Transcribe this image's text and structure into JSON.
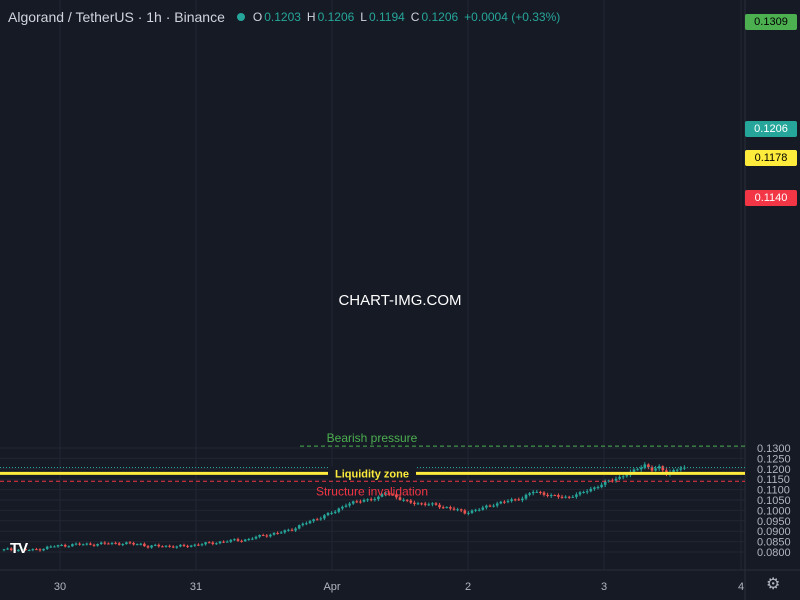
{
  "header": {
    "symbol": "Algorand / TetherUS · 1h · Binance",
    "o_label": "O",
    "o_value": "0.1203",
    "h_label": "H",
    "h_value": "0.1206",
    "l_label": "L",
    "l_value": "0.1194",
    "c_label": "C",
    "c_value": "0.1206",
    "change": "+0.0004 (+0.33%)"
  },
  "price_tags": {
    "bearish_level": "0.1309",
    "current": "0.1206",
    "liquidity": "0.1178",
    "invalidation": "0.1140"
  },
  "watermark": "CHART-IMG.COM",
  "colors": {
    "background": "#161a25",
    "up": "#26a69a",
    "down": "#ef5350",
    "liquidity": "#ffeb3b",
    "bearish": "#4caf50",
    "invalidation": "#f23645"
  },
  "icons": {
    "logo": "tradingview-logo-icon",
    "settings": "gear-icon"
  },
  "chart_data": {
    "type": "candlestick",
    "title": "Algorand / TetherUS · 1h · Binance",
    "x_ticks": [
      "30",
      "31",
      "Apr",
      "2",
      "3",
      "4"
    ],
    "y_ticks": [
      "0.0800",
      "0.0850",
      "0.0900",
      "0.0950",
      "0.1000",
      "0.1050",
      "0.1100",
      "0.1150",
      "0.1200",
      "0.1250",
      "0.1300"
    ],
    "ylim": [
      0.079,
      0.1312
    ],
    "grid": true,
    "levels": [
      {
        "name": "Bearish pressure",
        "value": 0.1309,
        "style": "dashed",
        "color": "#4caf50"
      },
      {
        "name": "Liquidity zone",
        "value": 0.1178,
        "style": "solid",
        "color": "#ffeb3b"
      },
      {
        "name": "Structure invalidation",
        "value": 0.114,
        "style": "dashed",
        "color": "#f23645"
      }
    ],
    "last_price": 0.1206,
    "anchors": [
      [
        0,
        0.081
      ],
      [
        5,
        0.0812
      ],
      [
        8,
        0.0808
      ],
      [
        10,
        0.0815
      ],
      [
        14,
        0.0828
      ],
      [
        20,
        0.0836
      ],
      [
        26,
        0.0838
      ],
      [
        30,
        0.0842
      ],
      [
        34,
        0.084
      ],
      [
        38,
        0.0838
      ],
      [
        40,
        0.0826
      ],
      [
        44,
        0.083
      ],
      [
        48,
        0.0825
      ],
      [
        52,
        0.0832
      ],
      [
        56,
        0.084
      ],
      [
        60,
        0.0848
      ],
      [
        64,
        0.0856
      ],
      [
        68,
        0.086
      ],
      [
        70,
        0.0872
      ],
      [
        72,
        0.088
      ],
      [
        76,
        0.089
      ],
      [
        80,
        0.091
      ],
      [
        84,
        0.094
      ],
      [
        88,
        0.0968
      ],
      [
        92,
        0.0995
      ],
      [
        95,
        0.103
      ],
      [
        98,
        0.104
      ],
      [
        100,
        0.105
      ],
      [
        104,
        0.106
      ],
      [
        106,
        0.1085
      ],
      [
        108,
        0.1075
      ],
      [
        110,
        0.1055
      ],
      [
        112,
        0.104
      ],
      [
        116,
        0.1032
      ],
      [
        120,
        0.1025
      ],
      [
        124,
        0.101
      ],
      [
        128,
        0.099
      ],
      [
        132,
        0.1005
      ],
      [
        136,
        0.103
      ],
      [
        140,
        0.1045
      ],
      [
        144,
        0.106
      ],
      [
        147,
        0.109
      ],
      [
        150,
        0.108
      ],
      [
        152,
        0.107
      ],
      [
        156,
        0.1063
      ],
      [
        160,
        0.108
      ],
      [
        164,
        0.111
      ],
      [
        168,
        0.114
      ],
      [
        171,
        0.116
      ],
      [
        174,
        0.118
      ],
      [
        176,
        0.12
      ],
      [
        178,
        0.122
      ],
      [
        180,
        0.1195
      ],
      [
        182,
        0.1205
      ],
      [
        184,
        0.118
      ],
      [
        186,
        0.1192
      ],
      [
        188,
        0.1203
      ],
      [
        189,
        0.1206
      ]
    ]
  }
}
